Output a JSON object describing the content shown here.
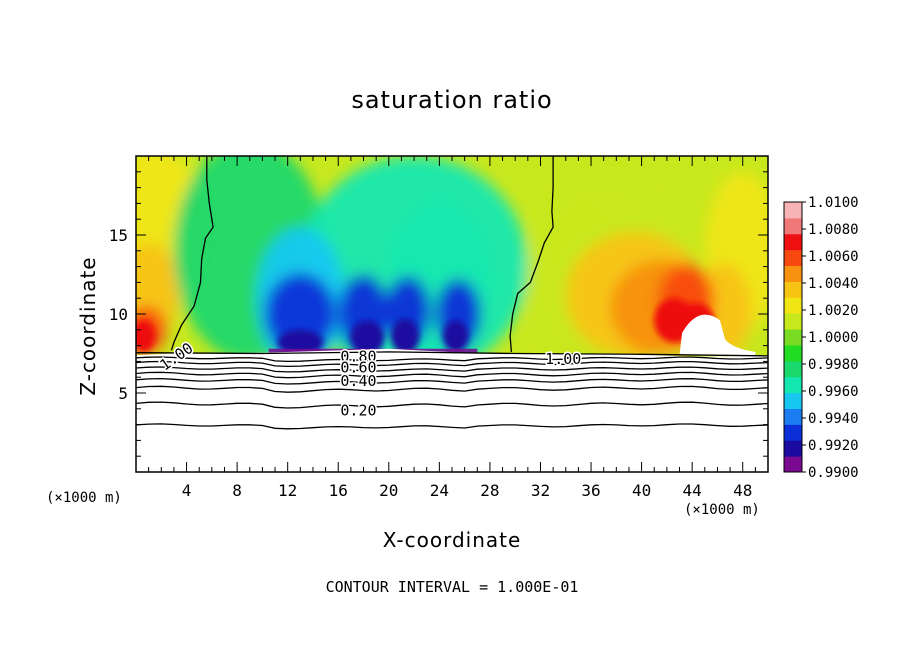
{
  "chart_data": {
    "type": "heatmap",
    "title": "saturation ratio",
    "xlabel": "X-coordinate",
    "ylabel": "Z-coordinate",
    "x_unit": "(×1000 m)",
    "xlim": [
      0,
      50
    ],
    "ylim": [
      0,
      20
    ],
    "x_ticks": [
      4,
      8,
      12,
      16,
      20,
      24,
      28,
      32,
      36,
      40,
      44,
      48
    ],
    "y_ticks": [
      5,
      10,
      15
    ],
    "footnote": "CONTOUR INTERVAL = 1.000E-01",
    "colorbar": {
      "labels": [
        "1.0100",
        "1.0080",
        "1.0060",
        "1.0040",
        "1.0020",
        "1.0000",
        "0.9980",
        "0.9960",
        "0.9940",
        "0.9920",
        "0.9900"
      ],
      "range": [
        0.99,
        1.01
      ],
      "colors": [
        "#7a0a8f",
        "#1a0aa0",
        "#0a2fd8",
        "#1a7cf0",
        "#16c8f0",
        "#14e8b0",
        "#1ad86c",
        "#22dc22",
        "#7adc22",
        "#c8e81e",
        "#f0e616",
        "#f8c414",
        "#f89010",
        "#f84a10",
        "#ee1010",
        "#f07878",
        "#f8b4b4"
      ]
    },
    "contours": [
      {
        "label": "1.00",
        "level": 1.0
      },
      {
        "label": "0.80",
        "level": 0.8
      },
      {
        "label": "0.60",
        "level": 0.6
      },
      {
        "label": "0.40",
        "level": 0.4
      },
      {
        "label": "0.20",
        "level": 0.2
      }
    ],
    "contour_labels_shown": [
      "1.00",
      "1.00",
      "0.80",
      "0.60",
      "0.40",
      "0.20"
    ],
    "field_features": [
      {
        "x_range": [
          10,
          27
        ],
        "z_range": [
          7.5,
          14
        ],
        "min_value": 0.9905,
        "note": "subsaturated lobes"
      },
      {
        "x_range": [
          36,
          46
        ],
        "z_range": [
          7.5,
          13
        ],
        "max_value": 1.0085,
        "note": "supersaturated region"
      },
      {
        "x_range": [
          0,
          2
        ],
        "z_range": [
          7.5,
          10
        ],
        "max_value": 1.0075,
        "note": "supersaturated edge"
      }
    ]
  }
}
